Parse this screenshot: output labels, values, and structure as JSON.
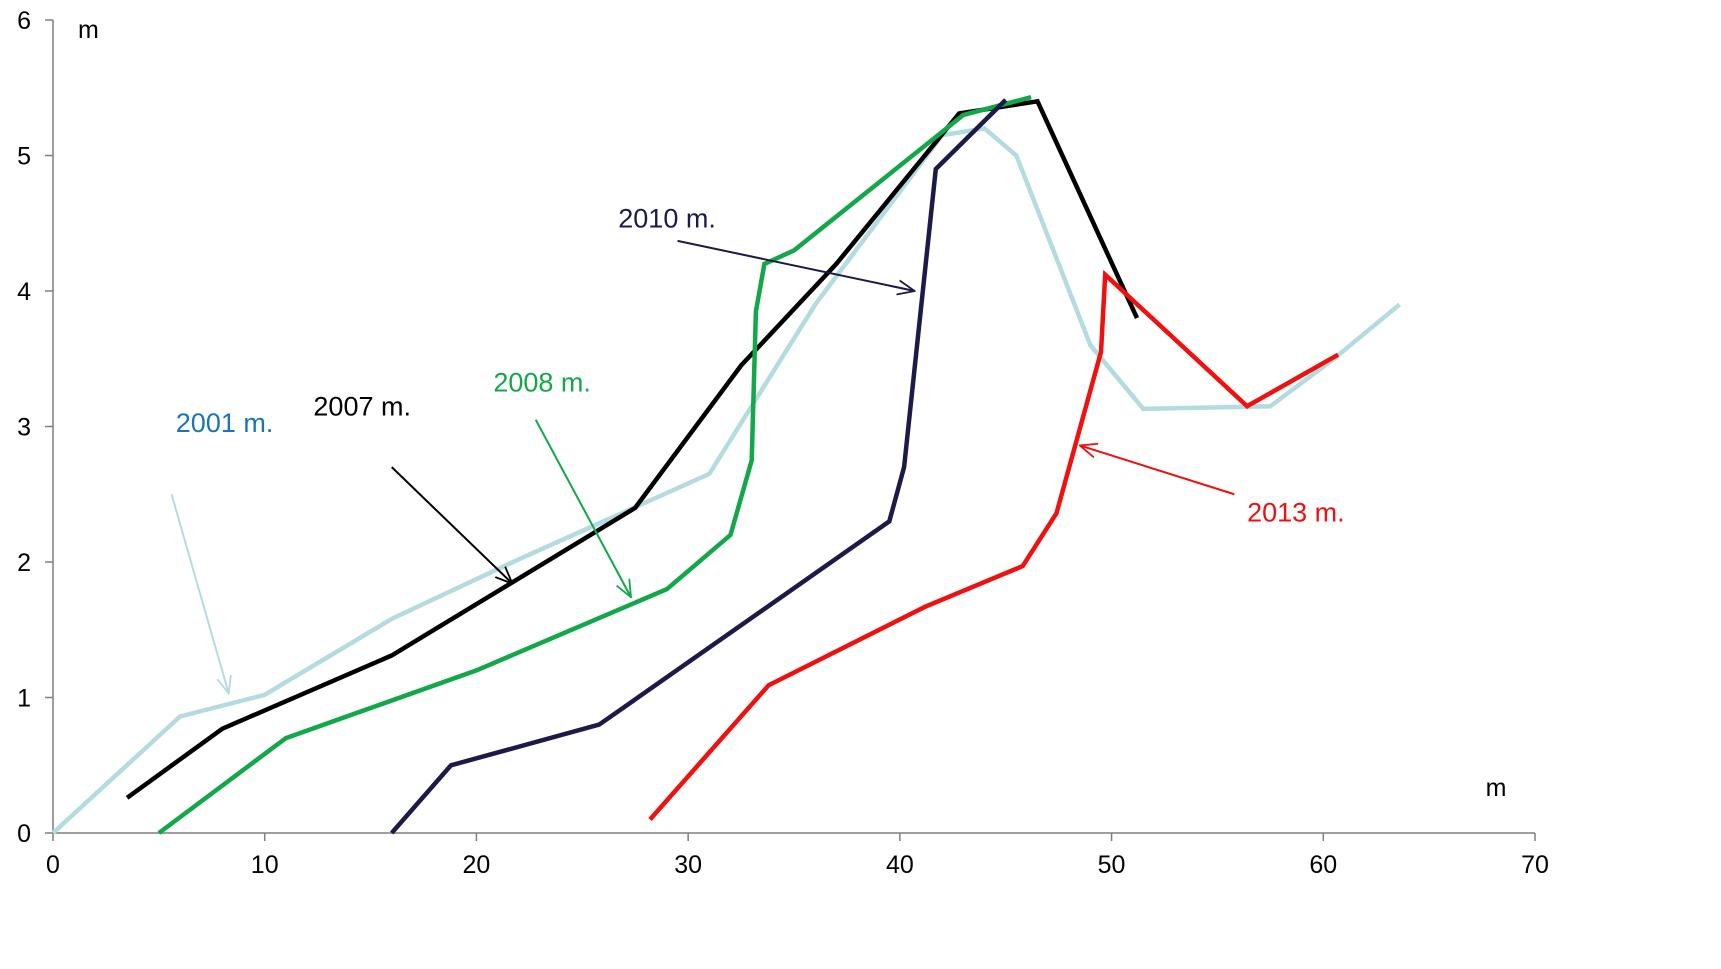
{
  "chart_data": {
    "type": "line",
    "title": "",
    "xlabel": "m",
    "ylabel": "m",
    "xlim": [
      0,
      70
    ],
    "ylim": [
      0,
      6
    ],
    "xticks": [
      0,
      10,
      20,
      30,
      40,
      50,
      60,
      70
    ],
    "yticks": [
      0,
      1,
      2,
      3,
      4,
      5,
      6
    ],
    "grid": false,
    "legend": "none",
    "series": [
      {
        "key": "y2001",
        "color": "#b3dbe0",
        "points": [
          [
            0,
            0
          ],
          [
            6,
            0.86
          ],
          [
            10,
            1.02
          ],
          [
            16,
            1.58
          ],
          [
            22,
            2.02
          ],
          [
            31,
            2.65
          ],
          [
            36,
            3.9
          ],
          [
            42,
            5.15
          ],
          [
            44,
            5.2
          ],
          [
            45.5,
            5.0
          ],
          [
            47,
            4.4
          ],
          [
            49,
            3.6
          ],
          [
            51.5,
            3.13
          ],
          [
            57.5,
            3.15
          ],
          [
            60.5,
            3.5
          ],
          [
            63.6,
            3.9
          ]
        ]
      },
      {
        "key": "y2007",
        "color": "#000000",
        "points": [
          [
            3.5,
            0.26
          ],
          [
            8,
            0.77
          ],
          [
            16,
            1.31
          ],
          [
            27.5,
            2.4
          ],
          [
            32.5,
            3.45
          ],
          [
            37,
            4.2
          ],
          [
            42.8,
            5.31
          ],
          [
            46.5,
            5.4
          ],
          [
            51.2,
            3.8
          ]
        ]
      },
      {
        "key": "y2008",
        "color": "#12a84a",
        "points": [
          [
            5,
            0
          ],
          [
            11,
            0.7
          ],
          [
            20,
            1.2
          ],
          [
            29,
            1.8
          ],
          [
            32,
            2.2
          ],
          [
            33,
            2.75
          ],
          [
            33.2,
            3.85
          ],
          [
            33.6,
            4.2
          ],
          [
            35,
            4.3
          ],
          [
            43,
            5.3
          ],
          [
            46.2,
            5.43
          ]
        ]
      },
      {
        "key": "y2010",
        "color": "#1b1a48",
        "points": [
          [
            16,
            0
          ],
          [
            18.8,
            0.5
          ],
          [
            25.8,
            0.8
          ],
          [
            39.5,
            2.3
          ],
          [
            40.2,
            2.7
          ],
          [
            41.7,
            4.9
          ],
          [
            45,
            5.41
          ]
        ]
      },
      {
        "key": "y2013",
        "color": "#f01010",
        "points": [
          [
            28.2,
            0.1
          ],
          [
            33.8,
            1.09
          ],
          [
            41.2,
            1.67
          ],
          [
            45.8,
            1.97
          ],
          [
            47.4,
            2.36
          ],
          [
            49.5,
            3.55
          ],
          [
            49.7,
            4.12
          ],
          [
            56.4,
            3.15
          ],
          [
            60.7,
            3.53
          ]
        ]
      }
    ],
    "annotations": [
      {
        "key": "a2001",
        "text": "2001 m.",
        "color": "#1c74b8",
        "arrow_color": "#b3dbe0",
        "text_at": [
          5.8,
          2.96
        ],
        "from": [
          5.6,
          2.5
        ],
        "to": [
          8.3,
          1.03
        ]
      },
      {
        "key": "a2007",
        "text": "2007 m.",
        "color": "#000000",
        "arrow_color": "#000000",
        "text_at": [
          12.3,
          3.08
        ],
        "from": [
          16,
          2.7
        ],
        "to": [
          21.7,
          1.84
        ]
      },
      {
        "key": "a2008",
        "text": "2008 m.",
        "color": "#12a84a",
        "arrow_color": "#12a84a",
        "text_at": [
          20.8,
          3.26
        ],
        "from": [
          22.8,
          3.05
        ],
        "to": [
          27.3,
          1.74
        ]
      },
      {
        "key": "a2010",
        "text": "2010 m.",
        "color": "#1b1a48",
        "arrow_color": "#1b1a48",
        "text_at": [
          26.7,
          4.47
        ],
        "from": [
          29.5,
          4.37
        ],
        "to": [
          40.7,
          4.0
        ]
      },
      {
        "key": "a2013",
        "text": "2013 m.",
        "color": "#f01010",
        "arrow_color": "#f01010",
        "text_at": [
          56.4,
          2.3
        ],
        "from": [
          55.8,
          2.5
        ],
        "to": [
          48.5,
          2.86
        ]
      }
    ]
  }
}
